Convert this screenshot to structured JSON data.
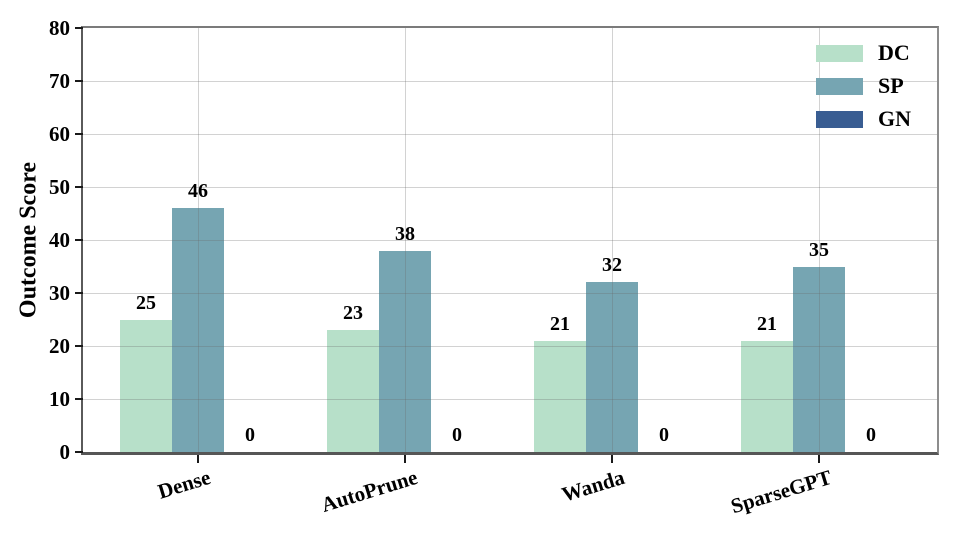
{
  "chart_data": {
    "type": "bar",
    "title": "",
    "xlabel": "",
    "ylabel": "Outcome Score",
    "categories": [
      "Dense",
      "AutoPrune",
      "Wanda",
      "SparseGPT"
    ],
    "series": [
      {
        "name": "DC",
        "color": "#b7e0c9",
        "values": [
          25,
          23,
          21,
          21
        ]
      },
      {
        "name": "SP",
        "color": "#76a5b2",
        "values": [
          46,
          38,
          32,
          35
        ]
      },
      {
        "name": "GN",
        "color": "#395d92",
        "values": [
          0,
          0,
          0,
          0
        ]
      }
    ],
    "ylim": [
      0,
      80
    ],
    "yticks": [
      0,
      10,
      20,
      30,
      40,
      50,
      60,
      70,
      80
    ],
    "grid": "both",
    "gridlines_over_bars": true,
    "bar_value_labels": true,
    "legend_position": "upper right",
    "legend": [
      {
        "label": "DC",
        "color": "#b7e0c9"
      },
      {
        "label": "SP",
        "color": "#76a5b2"
      },
      {
        "label": "GN",
        "color": "#395d92"
      }
    ]
  }
}
